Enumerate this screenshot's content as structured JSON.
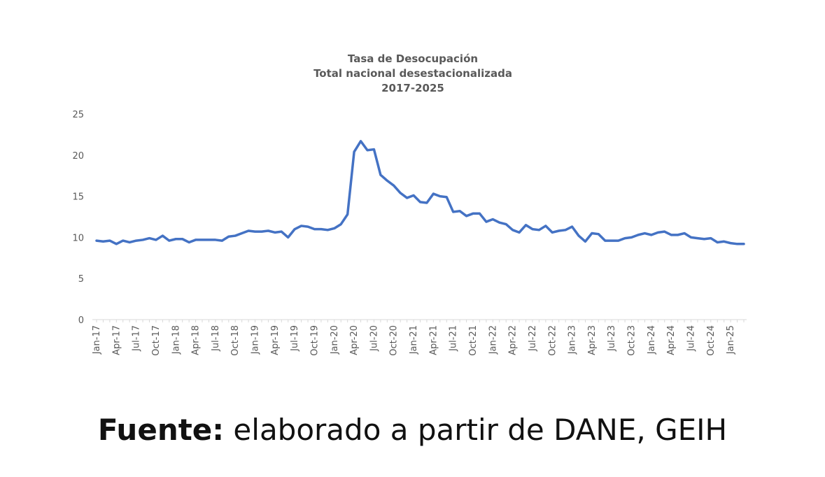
{
  "chart_data": {
    "type": "line",
    "title": [
      "Tasa de Desocupación",
      "Total nacional desestacionalizada",
      "2017-2025"
    ],
    "xlabel": "",
    "ylabel": "",
    "ylim": [
      0,
      25
    ],
    "yticks": [
      0,
      5,
      10,
      15,
      20,
      25
    ],
    "grid": false,
    "color": "#4472C4",
    "x": [
      "Jan-17",
      "Feb-17",
      "Mar-17",
      "Apr-17",
      "May-17",
      "Jun-17",
      "Jul-17",
      "Aug-17",
      "Sep-17",
      "Oct-17",
      "Nov-17",
      "Dec-17",
      "Jan-18",
      "Feb-18",
      "Mar-18",
      "Apr-18",
      "May-18",
      "Jun-18",
      "Jul-18",
      "Aug-18",
      "Sep-18",
      "Oct-18",
      "Nov-18",
      "Dec-18",
      "Jan-19",
      "Feb-19",
      "Mar-19",
      "Apr-19",
      "May-19",
      "Jun-19",
      "Jul-19",
      "Aug-19",
      "Sep-19",
      "Oct-19",
      "Nov-19",
      "Dec-19",
      "Jan-20",
      "Feb-20",
      "Mar-20",
      "Apr-20",
      "May-20",
      "Jun-20",
      "Jul-20",
      "Aug-20",
      "Sep-20",
      "Oct-20",
      "Nov-20",
      "Dec-20",
      "Jan-21",
      "Feb-21",
      "Mar-21",
      "Apr-21",
      "May-21",
      "Jun-21",
      "Jul-21",
      "Aug-21",
      "Sep-21",
      "Oct-21",
      "Nov-21",
      "Dec-21",
      "Jan-22",
      "Feb-22",
      "Mar-22",
      "Apr-22",
      "May-22",
      "Jun-22",
      "Jul-22",
      "Aug-22",
      "Sep-22",
      "Oct-22",
      "Nov-22",
      "Dec-22",
      "Jan-23",
      "Feb-23",
      "Mar-23",
      "Apr-23",
      "May-23",
      "Jun-23",
      "Jul-23",
      "Aug-23",
      "Sep-23",
      "Oct-23",
      "Nov-23",
      "Dec-23",
      "Jan-24",
      "Feb-24",
      "Mar-24",
      "Apr-24",
      "May-24",
      "Jun-24",
      "Jul-24",
      "Aug-24",
      "Sep-24",
      "Oct-24",
      "Nov-24",
      "Dec-24",
      "Jan-25",
      "Feb-25",
      "Mar-25"
    ],
    "tick_labels": [
      "Jan-17",
      "Apr-17",
      "Jul-17",
      "Oct-17",
      "Jan-18",
      "Apr-18",
      "Jul-18",
      "Oct-18",
      "Jan-19",
      "Apr-19",
      "Jul-19",
      "Oct-19",
      "Jan-20",
      "Apr-20",
      "Jul-20",
      "Oct-20",
      "Jan-21",
      "Apr-21",
      "Jul-21",
      "Oct-21",
      "Jan-22",
      "Apr-22",
      "Jul-22",
      "Oct-22",
      "Jan-23",
      "Apr-23",
      "Jul-23",
      "Oct-23",
      "Jan-24",
      "Apr-24",
      "Jul-24",
      "Oct-24",
      "Jan-25"
    ],
    "series": [
      {
        "values": [
          9.6,
          9.5,
          9.6,
          9.2,
          9.6,
          9.4,
          9.6,
          9.7,
          9.9,
          9.7,
          10.2,
          9.6,
          9.8,
          9.8,
          9.4,
          9.7,
          9.7,
          9.7,
          9.7,
          9.6,
          10.1,
          10.2,
          10.5,
          10.8,
          10.7,
          10.7,
          10.8,
          10.6,
          10.7,
          10.0,
          11.0,
          11.4,
          11.3,
          11.0,
          11.0,
          10.9,
          11.1,
          11.6,
          12.8,
          20.4,
          21.7,
          20.6,
          20.7,
          17.6,
          16.9,
          16.3,
          15.4,
          14.8,
          15.1,
          14.3,
          14.2,
          15.3,
          15.0,
          14.9,
          13.1,
          13.2,
          12.6,
          12.9,
          12.9,
          11.9,
          12.2,
          11.8,
          11.6,
          10.9,
          10.6,
          11.5,
          11.0,
          10.9,
          11.4,
          10.6,
          10.8,
          10.9,
          11.3,
          10.2,
          9.5,
          10.5,
          10.4,
          9.6,
          9.6,
          9.6,
          9.9,
          10.0,
          10.3,
          10.5,
          10.3,
          10.6,
          10.7,
          10.3,
          10.3,
          10.5,
          10.0,
          9.9,
          9.8,
          9.9,
          9.4,
          9.5,
          9.3,
          9.2,
          9.2
        ]
      }
    ]
  },
  "source": {
    "label": "Fuente:",
    "text": " elaborado a partir de DANE, GEIH"
  }
}
